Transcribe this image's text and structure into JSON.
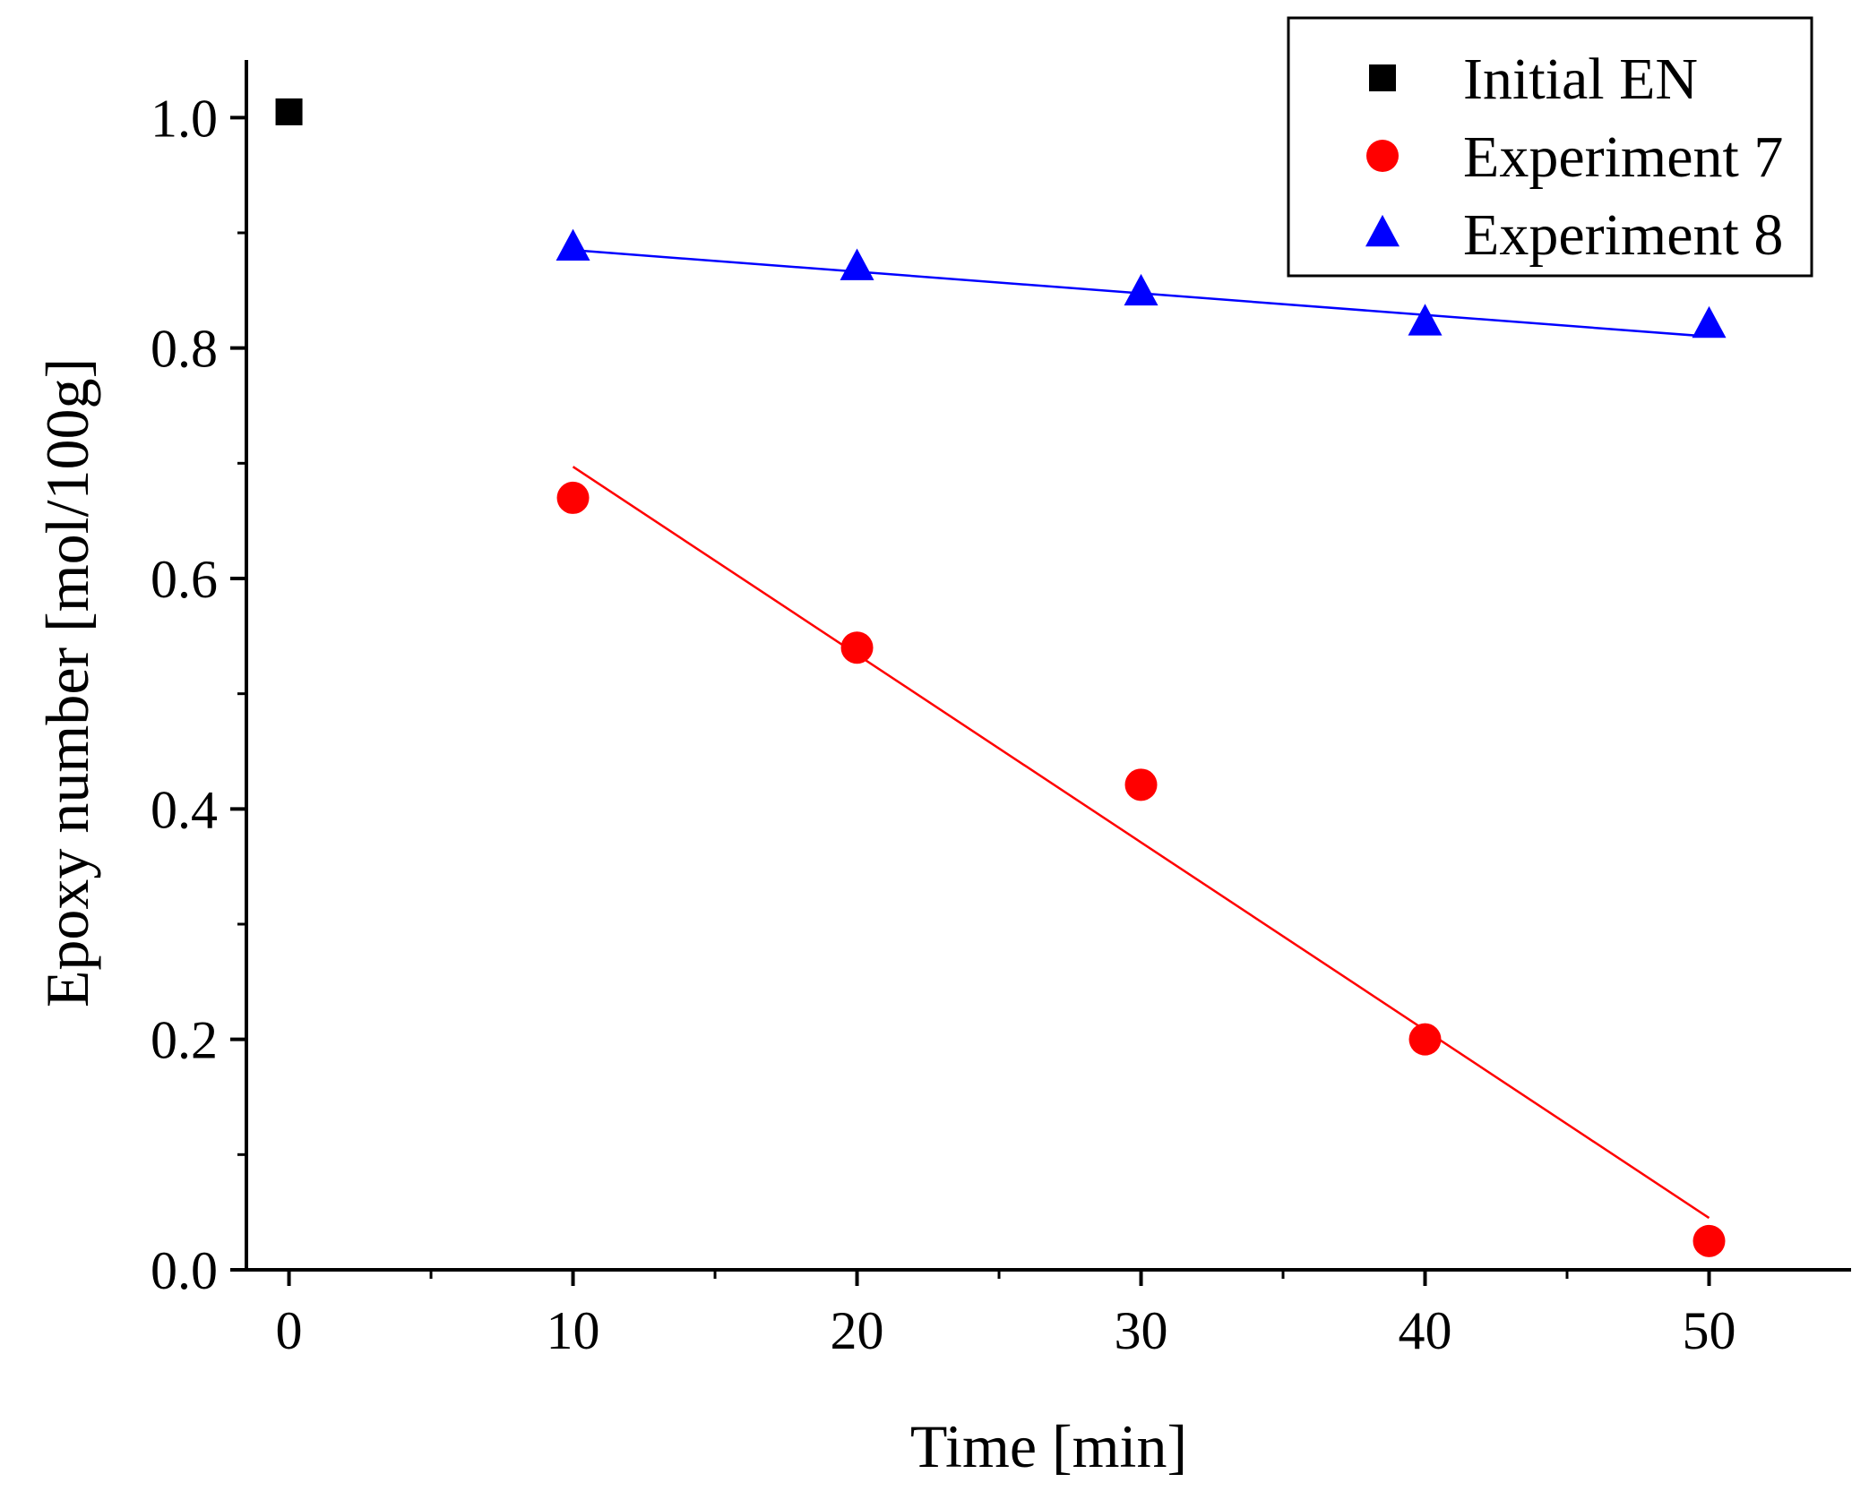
{
  "chart_data": {
    "type": "scatter",
    "title": "",
    "xlabel": "Time [min]",
    "ylabel": "Epoxy number [mol/100g]",
    "xlim": [
      -1.5,
      55
    ],
    "ylim": [
      0.0,
      1.05
    ],
    "x_ticks": [
      0,
      10,
      20,
      30,
      40,
      50
    ],
    "x_tick_labels": [
      "0",
      "10",
      "20",
      "30",
      "40",
      "50"
    ],
    "x_minor_ticks": [
      5,
      15,
      25,
      35,
      45
    ],
    "y_ticks": [
      0.0,
      0.2,
      0.4,
      0.6,
      0.8,
      1.0
    ],
    "y_tick_labels": [
      "0.0",
      "0.2",
      "0.4",
      "0.6",
      "0.8",
      "1.0"
    ],
    "y_minor_ticks": [
      0.1,
      0.3,
      0.5,
      0.7,
      0.9
    ],
    "grid": false,
    "legend_position": "top-right",
    "series": [
      {
        "name": "Initial EN",
        "marker": "square",
        "color": "#000000",
        "x": [
          0
        ],
        "y": [
          1.005
        ]
      },
      {
        "name": "Experiment 7",
        "marker": "circle",
        "color": "#ff0000",
        "x": [
          10,
          20,
          30,
          40,
          50
        ],
        "y": [
          0.67,
          0.54,
          0.421,
          0.2,
          0.025
        ],
        "fit_line": {
          "x": [
            10,
            50
          ],
          "y": [
            0.697,
            0.045
          ]
        }
      },
      {
        "name": "Experiment 8",
        "marker": "triangle",
        "color": "#0000ff",
        "x": [
          10,
          20,
          30,
          40,
          50
        ],
        "y": [
          0.887,
          0.87,
          0.848,
          0.822,
          0.82
        ],
        "fit_line": {
          "x": [
            10,
            50
          ],
          "y": [
            0.885,
            0.81
          ]
        }
      }
    ]
  }
}
